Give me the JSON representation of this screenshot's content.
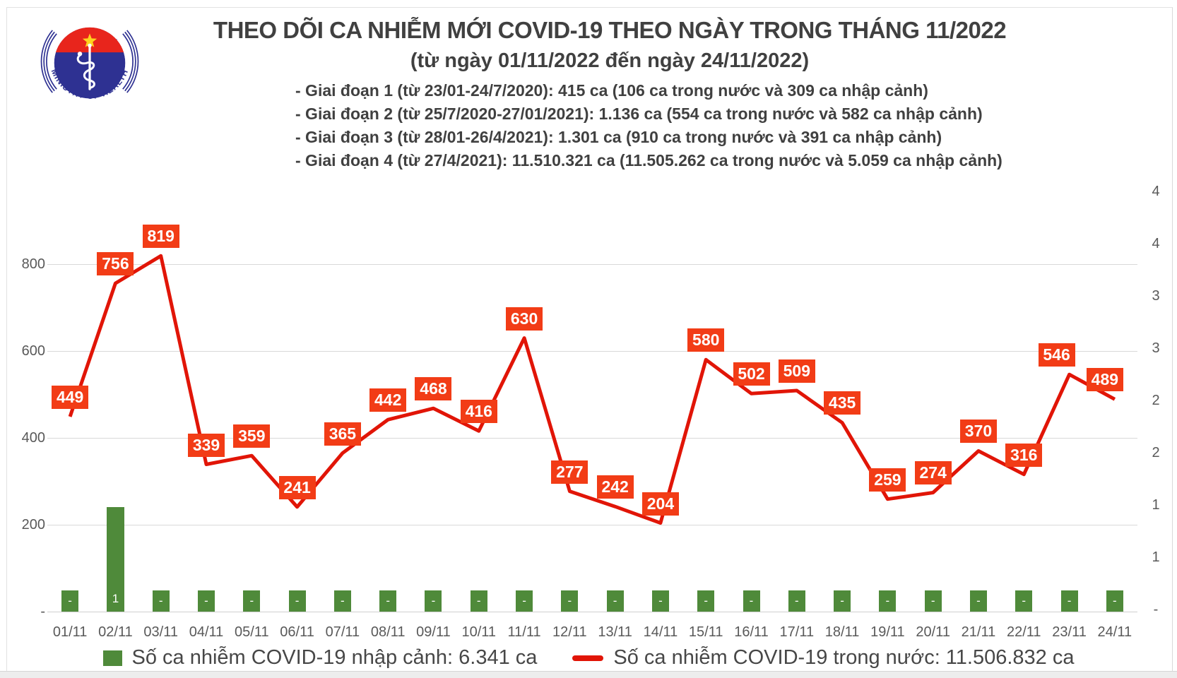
{
  "logo": {
    "top_text": "BỘ Y TẾ",
    "bottom_text": "MINISTRY OF HEALTH",
    "blue": "#2e3192",
    "red": "#e8251c",
    "star_yellow": "#ffd21e"
  },
  "header": {
    "title": "THEO DÕI CA NHIỄM MỚI COVID-19 THEO NGÀY TRONG THÁNG 11/2022",
    "subtitle": "(từ ngày 01/11/2022 đến ngày 24/11/2022)",
    "notes": [
      "- Giai đoạn 1 (từ 23/01-24/7/2020): 415 ca (106 ca trong nước và 309 ca nhập cảnh)",
      "- Giai đoạn 2 (từ 25/7/2020-27/01/2021): 1.136 ca (554 ca trong nước và 582 ca nhập cảnh)",
      "- Giai đoạn 3 (từ 28/01-26/4/2021): 1.301 ca (910 ca trong nước và 391 ca nhập cảnh)",
      "- Giai đoạn 4 (từ 27/4/2021): 11.510.321 ca (11.505.262 ca trong nước và 5.059 ca nhập cảnh)"
    ]
  },
  "chart_data": {
    "type": "bar+line combo",
    "categories": [
      "01/11",
      "02/11",
      "03/11",
      "04/11",
      "05/11",
      "06/11",
      "07/11",
      "08/11",
      "09/11",
      "10/11",
      "11/11",
      "12/11",
      "13/11",
      "14/11",
      "15/11",
      "16/11",
      "17/11",
      "18/11",
      "19/11",
      "20/11",
      "21/11",
      "22/11",
      "23/11",
      "24/11"
    ],
    "series": [
      {
        "name": "Số ca nhiễm COVID-19 nhập cảnh",
        "type": "bar",
        "axis": "right",
        "color": "#4f8a3a",
        "values": [
          0,
          1,
          0,
          0,
          0,
          0,
          0,
          0,
          0,
          0,
          0,
          0,
          0,
          0,
          0,
          0,
          0,
          0,
          0,
          0,
          0,
          0,
          0,
          0
        ],
        "zero_label": "-"
      },
      {
        "name": "Số ca nhiễm COVID-19 trong nước",
        "type": "line",
        "axis": "left",
        "color": "#e11507",
        "label_bg": "#f23c16",
        "values": [
          449,
          756,
          819,
          339,
          359,
          241,
          365,
          442,
          468,
          416,
          630,
          277,
          242,
          204,
          580,
          502,
          509,
          435,
          259,
          274,
          370,
          316,
          546,
          489
        ]
      }
    ],
    "left_axis": {
      "min": 0,
      "max": 800,
      "tick_values": [
        800,
        600,
        400,
        200,
        0
      ],
      "tick_labels": [
        "800",
        "600",
        "400",
        "200",
        "-"
      ]
    },
    "right_axis": {
      "min": 0,
      "max": 4,
      "step": 0.5,
      "tick_labels_top_to_bottom": [
        "4",
        "4",
        "3",
        "3",
        "2",
        "2",
        "1",
        "1",
        "-"
      ]
    },
    "grid": true,
    "gridline_values": [
      200,
      400,
      600,
      800
    ],
    "legend_position": "bottom"
  },
  "legend": [
    {
      "label": "Số ca nhiễm COVID-19 nhập cảnh: 6.341 ca",
      "marker": "bar-swatch",
      "color": "#4f8a3a"
    },
    {
      "label": "Số ca nhiễm COVID-19 trong nước: 11.506.832 ca",
      "marker": "line-dash",
      "color": "#e11507"
    }
  ]
}
